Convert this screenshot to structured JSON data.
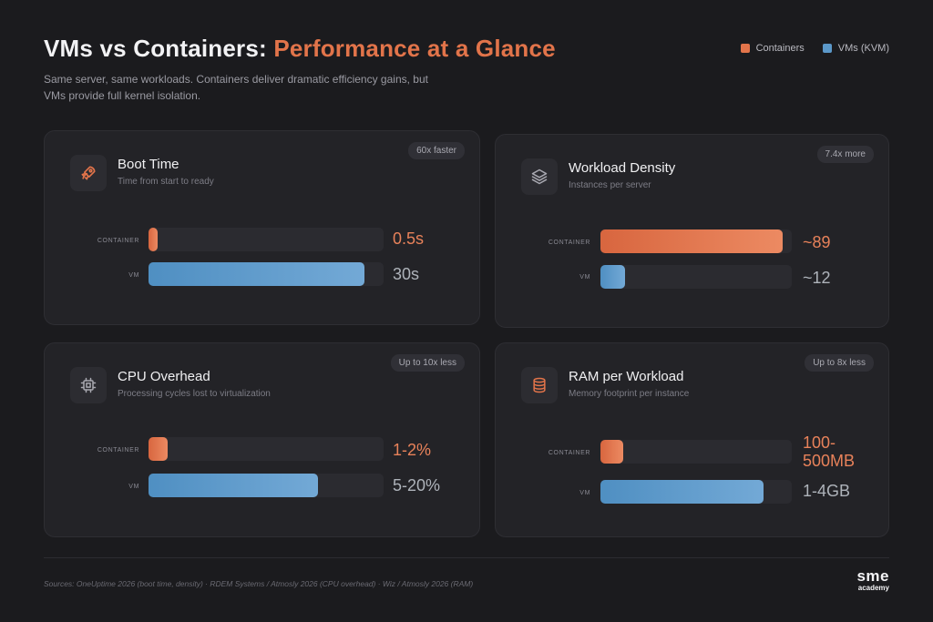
{
  "header": {
    "title_main": "VMs vs Containers: ",
    "title_accent": "Performance at a Glance",
    "subtitle": "Same server, same workloads. Containers deliver dramatic efficiency gains, but VMs provide full kernel isolation."
  },
  "legend": [
    {
      "label": "Containers",
      "color": "#e2744a"
    },
    {
      "label": "VMs (KVM)",
      "color": "#5b98c9"
    }
  ],
  "row_labels": {
    "container": "CONTAINER",
    "vm": "VM"
  },
  "colors": {
    "container": "#e2744a",
    "vm": "#5b98c9",
    "background": "#1b1b1e",
    "card": "#232327"
  },
  "chart_data": [
    {
      "type": "bar",
      "title": "Boot Time",
      "subtitle": "Time from start to ready",
      "badge": "60x faster",
      "icon": "rocket-icon",
      "categories": [
        "CONTAINER",
        "VM"
      ],
      "fill_fraction": [
        0.04,
        0.92
      ],
      "value_labels": [
        "0.5s",
        "30s"
      ]
    },
    {
      "type": "bar",
      "title": "Workload Density",
      "subtitle": "Instances per server",
      "badge": "7.4x more",
      "icon": "layers-icon",
      "categories": [
        "CONTAINER",
        "VM"
      ],
      "fill_fraction": [
        0.95,
        0.13
      ],
      "value_labels": [
        "~89",
        "~12"
      ]
    },
    {
      "type": "bar",
      "title": "CPU Overhead",
      "subtitle": "Processing cycles lost to virtualization",
      "badge": "Up to 10x less",
      "icon": "cpu-chip-icon",
      "categories": [
        "CONTAINER",
        "VM"
      ],
      "fill_fraction": [
        0.08,
        0.72
      ],
      "value_labels": [
        "1-2%",
        "5-20%"
      ]
    },
    {
      "type": "bar",
      "title": "RAM per Workload",
      "subtitle": "Memory footprint per instance",
      "badge": "Up to 8x less",
      "icon": "database-icon",
      "categories": [
        "CONTAINER",
        "VM"
      ],
      "fill_fraction": [
        0.12,
        0.85
      ],
      "value_labels": [
        "100-500MB",
        "1-4GB"
      ]
    }
  ],
  "footer": {
    "sources": "Sources: OneUptime 2026 (boot time, density) · RDEM Systems / Atmosly 2026 (CPU overhead) · Wiz / Atmosly 2026 (RAM)",
    "logo_main": "sme",
    "logo_sub": "academy"
  }
}
